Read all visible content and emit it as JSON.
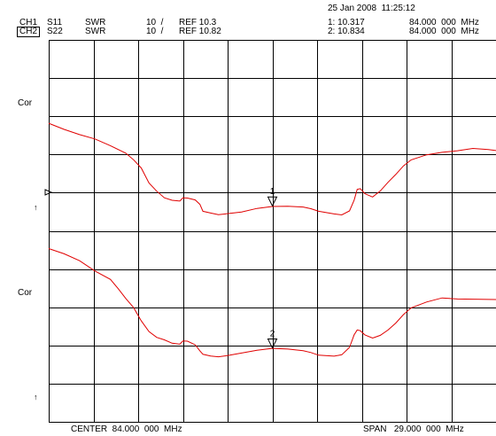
{
  "header": {
    "datetime": "25 Jan 2008  11:25:12",
    "ch1": {
      "channel": "CH1",
      "param": "S11",
      "format": "SWR",
      "scale": "10  /",
      "ref": "REF 10.3",
      "marker": "1: 10.317",
      "marker_freq": "84.000  000  MHz"
    },
    "ch2": {
      "channel": "CH2",
      "param": "S22",
      "format": "SWR",
      "scale": "10  /",
      "ref": "REF 10.82",
      "marker": "2: 10.834",
      "marker_freq": "84.000  000  MHz"
    }
  },
  "side_labels": {
    "cor_top": "Cor",
    "arrow_top": "↑",
    "cor_bottom": "Cor",
    "arrow_bottom": "↑"
  },
  "footer": {
    "center": "CENTER  84.000  000  MHz",
    "span": "SPAN   29.000  000  MHz"
  },
  "colors": {
    "trace": "#e00000",
    "grid": "#000000",
    "background": "#ffffff"
  },
  "chart_data": {
    "type": "line",
    "x_range_mhz": [
      69.5,
      98.5
    ],
    "grid": {
      "x_divisions": 10,
      "y_divisions": 10
    },
    "markers": [
      {
        "label": "1",
        "x_mhz": 84.0,
        "trace": "S11"
      },
      {
        "label": "2",
        "x_mhz": 84.0,
        "trace": "S22"
      }
    ],
    "series": [
      {
        "name": "S11",
        "x": [
          69.5,
          70.5,
          71.5,
          72.5,
          73.5,
          74.5,
          75.0,
          75.5,
          76.0,
          76.5,
          77.0,
          77.5,
          78.0,
          78.2,
          78.5,
          79.0,
          79.3,
          79.5,
          80.0,
          80.5,
          81.0,
          82.0,
          83.0,
          84.0,
          85.0,
          86.0,
          86.5,
          87.0,
          88.0,
          88.5,
          89.0,
          89.3,
          89.5,
          89.7,
          90.0,
          90.5,
          91.0,
          91.5,
          92.0,
          92.5,
          93.0,
          94.0,
          95.0,
          96.0,
          97.0,
          98.0,
          98.5
        ],
        "y": [
          8.3,
          7.6,
          7.0,
          6.5,
          5.7,
          4.8,
          4.0,
          3.0,
          1.2,
          0.2,
          -0.6,
          -0.9,
          -1.0,
          -0.6,
          -0.6,
          -0.8,
          -1.3,
          -2.1,
          -2.3,
          -2.5,
          -2.4,
          -2.2,
          -1.8,
          -1.6,
          -1.6,
          -1.7,
          -1.9,
          -2.2,
          -2.5,
          -2.6,
          -2.1,
          -0.8,
          0.5,
          0.6,
          0.0,
          -0.4,
          0.3,
          1.3,
          2.2,
          3.2,
          3.9,
          4.5,
          4.8,
          5.0,
          5.3,
          5.2,
          5.1
        ]
      },
      {
        "name": "S22",
        "x": [
          69.5,
          70.5,
          71.5,
          72.5,
          73.5,
          74.0,
          74.5,
          75.0,
          75.5,
          76.0,
          76.5,
          77.0,
          77.5,
          78.0,
          78.2,
          78.5,
          79.0,
          79.3,
          79.5,
          80.0,
          80.5,
          81.0,
          82.0,
          83.0,
          84.0,
          85.0,
          86.0,
          86.5,
          87.0,
          88.0,
          88.5,
          89.0,
          89.3,
          89.5,
          89.7,
          90.0,
          90.5,
          91.0,
          91.5,
          92.0,
          92.5,
          93.0,
          94.0,
          95.0,
          96.0,
          97.0,
          98.0,
          98.5
        ],
        "y": [
          7.0,
          6.4,
          5.6,
          4.4,
          3.4,
          2.3,
          1.1,
          0.0,
          -1.6,
          -2.9,
          -3.6,
          -3.9,
          -4.3,
          -4.4,
          -4.0,
          -4.0,
          -4.4,
          -5.1,
          -5.5,
          -5.7,
          -5.8,
          -5.7,
          -5.4,
          -5.1,
          -4.9,
          -5.0,
          -5.2,
          -5.4,
          -5.7,
          -5.8,
          -5.6,
          -4.7,
          -3.2,
          -2.6,
          -2.7,
          -3.2,
          -3.6,
          -3.3,
          -2.7,
          -1.9,
          -0.9,
          -0.1,
          0.6,
          1.1,
          1.0,
          1.0,
          1.0,
          1.0
        ]
      }
    ]
  }
}
